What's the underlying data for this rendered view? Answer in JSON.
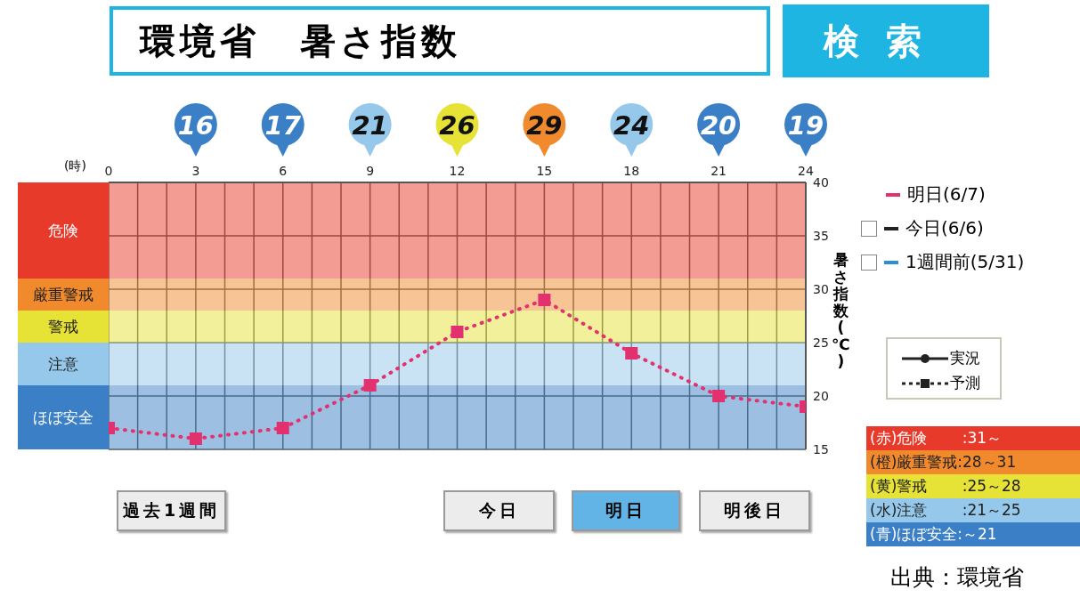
{
  "chart_data": {
    "type": "line",
    "title": "環境省　暑さ指数",
    "xlabel": "(時)",
    "ylabel": "暑さ指数(℃)",
    "x": [
      0,
      3,
      6,
      9,
      12,
      15,
      18,
      21,
      24
    ],
    "series": [
      {
        "name": "明日(6/7)",
        "color": "#e3306f",
        "values": [
          17,
          16,
          17,
          21,
          26,
          29,
          24,
          20,
          19
        ]
      }
    ],
    "xlim": [
      0,
      24
    ],
    "xticks": [
      0,
      3,
      6,
      9,
      12,
      15,
      18,
      21,
      24
    ],
    "ylim": [
      15,
      40
    ],
    "yticks": [
      15,
      20,
      25,
      30,
      35,
      40
    ],
    "bands": [
      {
        "axis": "y",
        "from": 31,
        "to": 40,
        "label": "危険",
        "color": "#e83a2a"
      },
      {
        "axis": "y",
        "from": 28,
        "to": 31,
        "label": "厳重警戒",
        "color": "#f08a2c"
      },
      {
        "axis": "y",
        "from": 25,
        "to": 28,
        "label": "警戒",
        "color": "#e6e236"
      },
      {
        "axis": "y",
        "from": 21,
        "to": 25,
        "label": "注意",
        "color": "#95c8ea"
      },
      {
        "axis": "y",
        "from": 15,
        "to": 21,
        "label": "ほぼ安全",
        "color": "#3b7fc6"
      }
    ],
    "value_labels": [
      null,
      "16",
      "17",
      "21",
      "26",
      "29",
      "24",
      "20",
      "19"
    ],
    "grid": true,
    "legend": "top right",
    "marker": "square",
    "line_style": "dotted",
    "annotations": [
      "検索",
      "今日(6/6)",
      "1週間前(5/31)",
      "実況",
      "予測",
      "過去1週間",
      "今日",
      "明日",
      "明後日",
      "(赤)危険　　 :31～",
      "(橙)厳重警戒:28～31",
      "(黄)警戒　　 :25～28",
      "(水)注意　　 :21～25",
      "(青)ほぼ安全:～21",
      "出典：環境省"
    ]
  }
}
